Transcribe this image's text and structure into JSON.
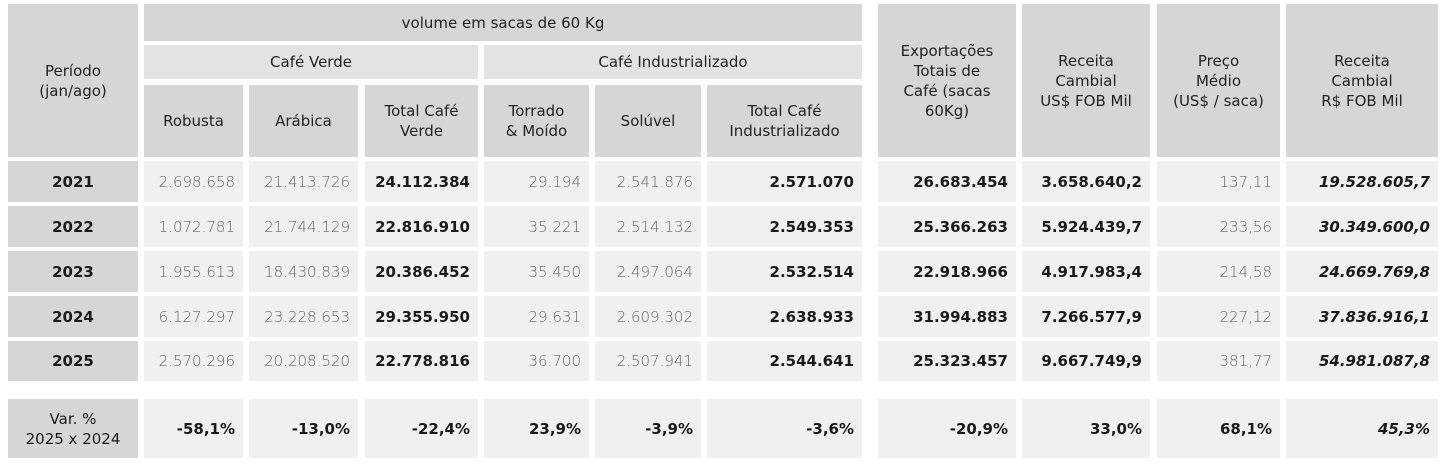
{
  "header": {
    "periodo": "Período\n(jan/ago)",
    "volume": "volume em sacas de 60 Kg",
    "cafe_verde": "Café Verde",
    "cafe_industrializado": "Café Industrializado",
    "columns": [
      "Robusta",
      "Arábica",
      "Total Café Verde",
      "Torrado & Moído",
      "Solúvel",
      "Total Café Industrializado",
      "Exportações Totais de Café (sacas 60Kg)",
      "Receita Cambial US$ FOB Mil",
      "Preço Médio (US$ / saca)",
      "Receita Cambial R$ FOB Mil"
    ]
  },
  "rows": [
    {
      "periodo": "2021",
      "values": [
        "2.698.658",
        "21.413.726",
        "24.112.384",
        "29.194",
        "2.541.876",
        "2.571.070",
        "26.683.454",
        "3.658.640,2",
        "137,11",
        "19.528.605,7"
      ]
    },
    {
      "periodo": "2022",
      "values": [
        "1.072.781",
        "21.744.129",
        "22.816.910",
        "35.221",
        "2.514.132",
        "2.549.353",
        "25.366.263",
        "5.924.439,7",
        "233,56",
        "30.349.600,0"
      ]
    },
    {
      "periodo": "2023",
      "values": [
        "1.955.613",
        "18.430.839",
        "20.386.452",
        "35.450",
        "2.497.064",
        "2.532.514",
        "22.918.966",
        "4.917.983,4",
        "214,58",
        "24.669.769,8"
      ]
    },
    {
      "periodo": "2024",
      "values": [
        "6.127.297",
        "23.228.653",
        "29.355.950",
        "29.631",
        "2.609.302",
        "2.638.933",
        "31.994.883",
        "7.266.577,9",
        "227,12",
        "37.836.916,1"
      ]
    },
    {
      "periodo": "2025",
      "values": [
        "2.570.296",
        "20.208.520",
        "22.778.816",
        "36.700",
        "2.507.941",
        "2.544.641",
        "25.323.457",
        "9.667.749,9",
        "381,77",
        "54.981.087,8"
      ]
    }
  ],
  "variation": {
    "label": "Var. %\n2025 x 2024",
    "values": [
      "-58,1%",
      "-13,0%",
      "-22,4%",
      "23,9%",
      "-3,9%",
      "-3,6%",
      "-20,9%",
      "33,0%",
      "68,1%",
      "45,3%"
    ]
  }
}
